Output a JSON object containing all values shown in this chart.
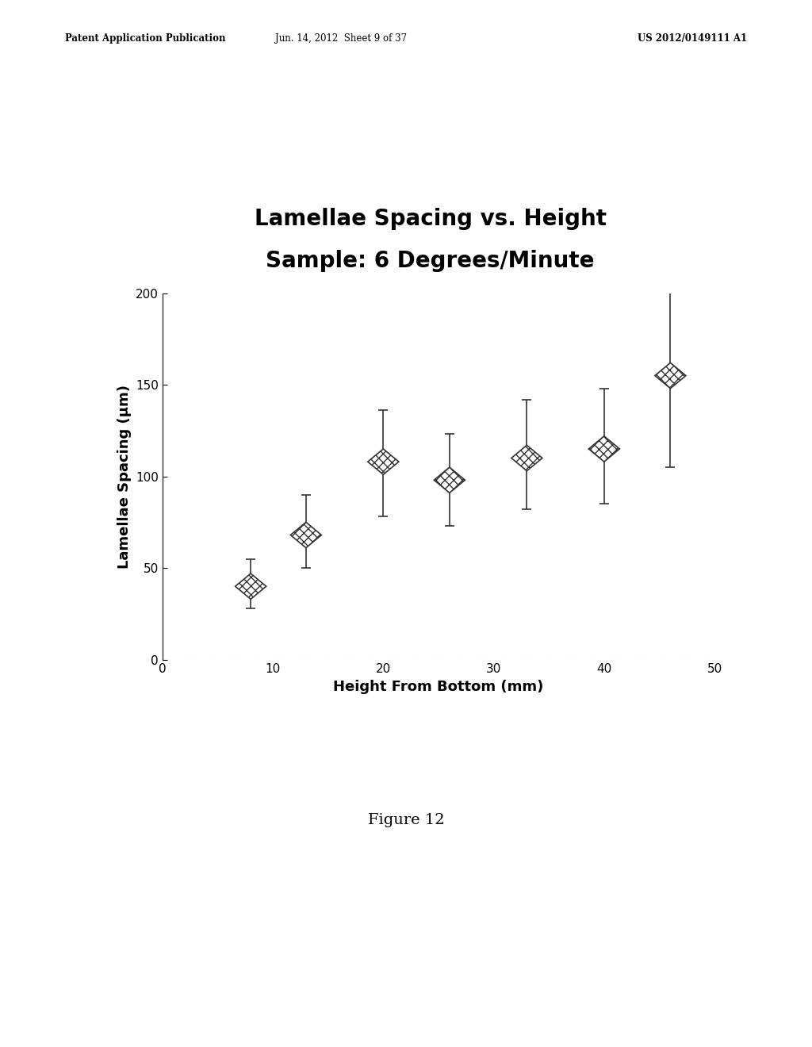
{
  "title_line1": "Lamellae Spacing vs. Height",
  "title_line2": "Sample: 6 Degrees/Minute",
  "xlabel": "Height From Bottom (mm)",
  "ylabel": "Lamellae Spacing (μm)",
  "x": [
    8,
    13,
    20,
    26,
    33,
    40,
    46
  ],
  "y": [
    40,
    68,
    108,
    98,
    110,
    115,
    155
  ],
  "yerr_low": [
    12,
    18,
    30,
    25,
    28,
    30,
    50
  ],
  "yerr_high": [
    15,
    22,
    28,
    25,
    32,
    33,
    48
  ],
  "xlim": [
    0,
    50
  ],
  "ylim": [
    0,
    200
  ],
  "xticks": [
    0,
    10,
    20,
    30,
    40,
    50
  ],
  "yticks": [
    0,
    50,
    100,
    150,
    200
  ],
  "background_color": "#ffffff",
  "marker_color": "#555555",
  "marker_size": 12,
  "title_fontsize": 20,
  "label_fontsize": 13,
  "tick_fontsize": 11,
  "header_left": "Patent Application Publication",
  "header_mid": "Jun. 14, 2012  Sheet 9 of 37",
  "header_right": "US 2012/0149111 A1",
  "figure_caption": "Figure 12"
}
